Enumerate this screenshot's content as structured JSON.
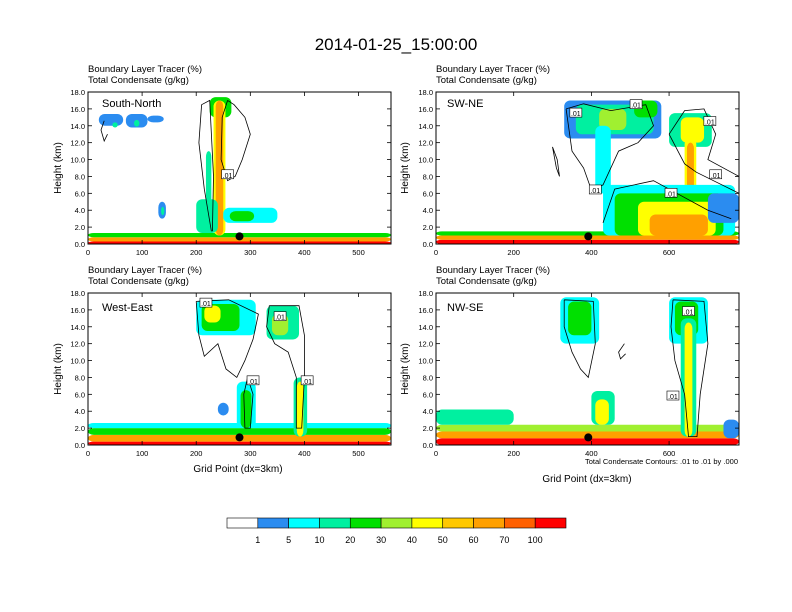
{
  "title": "2014-01-25_15:00:00",
  "colors": {
    "levels": [
      "#ffffff",
      "#2b8cf0",
      "#00ffff",
      "#00f0a0",
      "#00e000",
      "#a0f030",
      "#ffff00",
      "#ffc800",
      "#ffa000",
      "#ff6000",
      "#ff0000"
    ],
    "contour": "#000000",
    "marker": "#000000"
  },
  "chart_data": [
    {
      "type": "heatmap",
      "panel_label": "South-North",
      "subtitle_1": "Boundary Layer Tracer   (%)",
      "subtitle_2": "Total Condensate   (g/kg)",
      "ylabel": "Height (km)",
      "xlabel": "",
      "xlim": [
        0,
        560
      ],
      "ylim": [
        0,
        18
      ],
      "xticks": [
        "0",
        "100",
        "200",
        "300",
        "400",
        "500"
      ],
      "yticks": [
        "0.0",
        "2.0",
        "4.0",
        "6.0",
        "8.0",
        "10.0",
        "12.0",
        "14.0",
        "16.0",
        "18.0"
      ],
      "marker": {
        "x": 280,
        "y": 0.9
      },
      "contour_labels": [
        {
          "text": ".01",
          "x": 258,
          "y": 8.2
        }
      ],
      "blobs": [
        {
          "x": 0,
          "y": 0,
          "w": 560,
          "h": 0.3,
          "level": 10
        },
        {
          "x": 0,
          "y": 0.3,
          "w": 560,
          "h": 0.5,
          "level": 8
        },
        {
          "x": 0,
          "y": 0.8,
          "w": 560,
          "h": 0.5,
          "level": 4
        },
        {
          "x": 20,
          "y": 14.0,
          "w": 45,
          "h": 1.4,
          "level": 1
        },
        {
          "x": 70,
          "y": 13.8,
          "w": 40,
          "h": 1.6,
          "level": 1
        },
        {
          "x": 110,
          "y": 14.4,
          "w": 30,
          "h": 0.8,
          "level": 1
        },
        {
          "x": 45,
          "y": 13.8,
          "w": 10,
          "h": 0.6,
          "level": 3
        },
        {
          "x": 85,
          "y": 13.9,
          "w": 10,
          "h": 0.8,
          "level": 3
        },
        {
          "x": 225,
          "y": 15.0,
          "w": 40,
          "h": 2.4,
          "level": 4
        },
        {
          "x": 232,
          "y": 1.0,
          "w": 22,
          "h": 16.0,
          "level": 6
        },
        {
          "x": 236,
          "y": 1.0,
          "w": 14,
          "h": 16.0,
          "level": 8
        },
        {
          "x": 218,
          "y": 3.0,
          "w": 10,
          "h": 8.0,
          "level": 3
        },
        {
          "x": 200,
          "y": 1.3,
          "w": 40,
          "h": 4.0,
          "level": 3
        },
        {
          "x": 250,
          "y": 2.5,
          "w": 100,
          "h": 1.8,
          "level": 2
        },
        {
          "x": 262,
          "y": 2.7,
          "w": 45,
          "h": 1.2,
          "level": 4
        },
        {
          "x": 130,
          "y": 3.0,
          "w": 14,
          "h": 2.0,
          "level": 1
        },
        {
          "x": 135,
          "y": 3.4,
          "w": 6,
          "h": 1.0,
          "level": 3
        }
      ],
      "contours": [
        [
          [
            228,
            1.5
          ],
          [
            215,
            6.5
          ],
          [
            205,
            12.0
          ],
          [
            210,
            16.5
          ],
          [
            225,
            17.0
          ],
          [
            232,
            8.0
          ],
          [
            230,
            1.5
          ]
        ],
        [
          [
            258,
            17.0
          ],
          [
            270,
            16.5
          ],
          [
            290,
            15.0
          ],
          [
            300,
            13.0
          ],
          [
            285,
            10.0
          ],
          [
            272,
            8.0
          ],
          [
            258,
            7.5
          ],
          [
            246,
            10.0
          ],
          [
            248,
            15.0
          ],
          [
            258,
            17.0
          ]
        ],
        [
          [
            30,
            14.6
          ],
          [
            24,
            13.5
          ],
          [
            30,
            12.2
          ],
          [
            36,
            13.0
          ]
        ]
      ]
    },
    {
      "type": "heatmap",
      "panel_label": "SW-NE",
      "subtitle_1": "Boundary Layer Tracer   (%)",
      "subtitle_2": "Total Condensate   (g/kg)",
      "ylabel": "Height (km)",
      "xlabel": "",
      "xlim": [
        0,
        780
      ],
      "ylim": [
        0,
        18
      ],
      "xticks": [
        "0",
        "200",
        "400",
        "600"
      ],
      "yticks": [
        "0.0",
        "2.0",
        "4.0",
        "6.0",
        "8.0",
        "10.0",
        "12.0",
        "14.0",
        "16.0",
        "18.0"
      ],
      "marker": {
        "x": 392,
        "y": 0.9
      },
      "contour_labels": [
        {
          "text": ".01",
          "x": 515,
          "y": 16.5
        },
        {
          "text": ".01",
          "x": 360,
          "y": 15.5
        },
        {
          "text": ".01",
          "x": 705,
          "y": 14.5
        },
        {
          "text": ".01",
          "x": 720,
          "y": 8.2
        },
        {
          "text": ".01",
          "x": 410,
          "y": 6.4
        },
        {
          "text": ".01",
          "x": 605,
          "y": 6.0
        }
      ],
      "blobs": [
        {
          "x": 0,
          "y": 0,
          "w": 780,
          "h": 0.5,
          "level": 10
        },
        {
          "x": 0,
          "y": 0.5,
          "w": 780,
          "h": 0.5,
          "level": 8
        },
        {
          "x": 0,
          "y": 1.0,
          "w": 780,
          "h": 0.5,
          "level": 4
        },
        {
          "x": 330,
          "y": 12.5,
          "w": 250,
          "h": 4.5,
          "level": 1
        },
        {
          "x": 360,
          "y": 13.0,
          "w": 200,
          "h": 3.5,
          "level": 3
        },
        {
          "x": 420,
          "y": 13.5,
          "w": 70,
          "h": 2.5,
          "level": 5
        },
        {
          "x": 510,
          "y": 15.0,
          "w": 60,
          "h": 2.0,
          "level": 4
        },
        {
          "x": 410,
          "y": 6.0,
          "w": 40,
          "h": 8.0,
          "level": 2
        },
        {
          "x": 600,
          "y": 11.5,
          "w": 110,
          "h": 4.0,
          "level": 3
        },
        {
          "x": 630,
          "y": 12.0,
          "w": 60,
          "h": 3.0,
          "level": 6
        },
        {
          "x": 640,
          "y": 1.0,
          "w": 30,
          "h": 11.5,
          "level": 6
        },
        {
          "x": 646,
          "y": 1.0,
          "w": 18,
          "h": 11.0,
          "level": 8
        },
        {
          "x": 430,
          "y": 1.0,
          "w": 340,
          "h": 6.0,
          "level": 2
        },
        {
          "x": 460,
          "y": 1.0,
          "w": 280,
          "h": 5.0,
          "level": 4
        },
        {
          "x": 520,
          "y": 1.0,
          "w": 200,
          "h": 4.0,
          "level": 6
        },
        {
          "x": 550,
          "y": 1.0,
          "w": 150,
          "h": 2.5,
          "level": 8
        },
        {
          "x": 700,
          "y": 2.5,
          "w": 80,
          "h": 3.5,
          "level": 1
        }
      ],
      "contours": [
        [
          [
            335,
            16.0
          ],
          [
            380,
            16.6
          ],
          [
            450,
            15.8
          ],
          [
            540,
            16.5
          ],
          [
            560,
            14.0
          ],
          [
            520,
            12.0
          ],
          [
            470,
            11.0
          ],
          [
            430,
            7.0
          ],
          [
            400,
            6.4
          ],
          [
            380,
            9.0
          ],
          [
            350,
            11.0
          ],
          [
            335,
            16.0
          ]
        ],
        [
          [
            300,
            11.5
          ],
          [
            310,
            9.0
          ],
          [
            318,
            8.0
          ],
          [
            312,
            10.0
          ],
          [
            300,
            11.5
          ]
        ],
        [
          [
            600,
            13.0
          ],
          [
            640,
            15.8
          ],
          [
            690,
            16.0
          ],
          [
            720,
            13.0
          ],
          [
            700,
            10.0
          ],
          [
            780,
            8.0
          ],
          [
            780,
            6.0
          ],
          [
            670,
            8.5
          ],
          [
            640,
            9.5
          ],
          [
            600,
            13.0
          ]
        ],
        [
          [
            430,
            2.5
          ],
          [
            460,
            6.5
          ],
          [
            560,
            7.5
          ],
          [
            620,
            6.0
          ],
          [
            700,
            4.0
          ],
          [
            760,
            3.0
          ]
        ]
      ]
    },
    {
      "type": "heatmap",
      "panel_label": "West-East",
      "subtitle_1": "Boundary Layer Tracer   (%)",
      "subtitle_2": "Total Condensate   (g/kg)",
      "ylabel": "Height (km)",
      "xlabel": "Grid Point (dx=3km)",
      "xlim": [
        0,
        560
      ],
      "ylim": [
        0,
        18
      ],
      "xticks": [
        "0",
        "100",
        "200",
        "300",
        "400",
        "500"
      ],
      "yticks": [
        "0.0",
        "2.0",
        "4.0",
        "6.0",
        "8.0",
        "10.0",
        "12.0",
        "14.0",
        "16.0",
        "18.0"
      ],
      "marker": {
        "x": 280,
        "y": 0.9
      },
      "contour_labels": [
        {
          "text": ".01",
          "x": 218,
          "y": 16.8
        },
        {
          "text": ".01",
          "x": 355,
          "y": 15.2
        },
        {
          "text": ".01",
          "x": 305,
          "y": 7.6
        },
        {
          "text": ".01",
          "x": 405,
          "y": 7.6
        }
      ],
      "blobs": [
        {
          "x": 0,
          "y": 0,
          "w": 560,
          "h": 0.4,
          "level": 10
        },
        {
          "x": 0,
          "y": 0.4,
          "w": 560,
          "h": 0.8,
          "level": 8
        },
        {
          "x": 0,
          "y": 1.2,
          "w": 560,
          "h": 0.8,
          "level": 4
        },
        {
          "x": 0,
          "y": 2.0,
          "w": 560,
          "h": 0.6,
          "level": 2
        },
        {
          "x": 200,
          "y": 13.0,
          "w": 110,
          "h": 4.2,
          "level": 2
        },
        {
          "x": 210,
          "y": 13.5,
          "w": 70,
          "h": 3.2,
          "level": 4
        },
        {
          "x": 215,
          "y": 14.5,
          "w": 30,
          "h": 2.0,
          "level": 6
        },
        {
          "x": 330,
          "y": 12.5,
          "w": 60,
          "h": 4.0,
          "level": 3
        },
        {
          "x": 340,
          "y": 13.0,
          "w": 30,
          "h": 2.5,
          "level": 5
        },
        {
          "x": 275,
          "y": 2.0,
          "w": 35,
          "h": 5.5,
          "level": 2
        },
        {
          "x": 282,
          "y": 2.0,
          "w": 20,
          "h": 4.5,
          "level": 4
        },
        {
          "x": 380,
          "y": 1.0,
          "w": 25,
          "h": 7.0,
          "level": 3
        },
        {
          "x": 386,
          "y": 1.0,
          "w": 12,
          "h": 6.5,
          "level": 6
        },
        {
          "x": 240,
          "y": 3.5,
          "w": 20,
          "h": 1.5,
          "level": 1
        }
      ],
      "contours": [
        [
          [
            200,
            17.0
          ],
          [
            260,
            17.2
          ],
          [
            315,
            15.5
          ],
          [
            305,
            12.5
          ],
          [
            290,
            10.0
          ],
          [
            275,
            8.0
          ],
          [
            255,
            9.0
          ],
          [
            240,
            12.0
          ],
          [
            215,
            10.5
          ],
          [
            205,
            13.0
          ],
          [
            200,
            17.0
          ]
        ],
        [
          [
            335,
            16.5
          ],
          [
            390,
            16.5
          ],
          [
            400,
            13.0
          ],
          [
            400,
            8.0
          ],
          [
            395,
            2.0
          ],
          [
            385,
            2.0
          ],
          [
            385,
            8.0
          ],
          [
            370,
            11.0
          ],
          [
            345,
            12.0
          ],
          [
            330,
            14.0
          ],
          [
            335,
            16.5
          ]
        ],
        [
          [
            295,
            8.0
          ],
          [
            305,
            6.0
          ],
          [
            300,
            2.0
          ],
          [
            290,
            2.0
          ],
          [
            288,
            6.0
          ],
          [
            295,
            8.0
          ]
        ]
      ]
    },
    {
      "type": "heatmap",
      "panel_label": "NW-SE",
      "subtitle_1": "Boundary Layer Tracer   (%)",
      "subtitle_2": "Total Condensate   (g/kg)",
      "ylabel": "Height (km)",
      "xlabel": "Grid Point (dx=3km)",
      "footnote": "Total Condensate Contours: .01 to .01 by .000",
      "xlim": [
        0,
        780
      ],
      "ylim": [
        0,
        18
      ],
      "xticks": [
        "0",
        "200",
        "400",
        "600"
      ],
      "yticks": [
        "0.0",
        "2.0",
        "4.0",
        "6.0",
        "8.0",
        "10.0",
        "12.0",
        "14.0",
        "16.0",
        "18.0"
      ],
      "marker": {
        "x": 392,
        "y": 0.9
      },
      "contour_labels": [
        {
          "text": ".01",
          "x": 650,
          "y": 15.8
        },
        {
          "text": ".01",
          "x": 610,
          "y": 5.8
        }
      ],
      "blobs": [
        {
          "x": 0,
          "y": 0,
          "w": 780,
          "h": 0.8,
          "level": 10
        },
        {
          "x": 0,
          "y": 0.8,
          "w": 780,
          "h": 0.8,
          "level": 8
        },
        {
          "x": 0,
          "y": 1.6,
          "w": 780,
          "h": 0.8,
          "level": 5
        },
        {
          "x": 0,
          "y": 2.4,
          "w": 200,
          "h": 1.8,
          "level": 3
        },
        {
          "x": 400,
          "y": 2.4,
          "w": 60,
          "h": 4.0,
          "level": 3
        },
        {
          "x": 410,
          "y": 2.4,
          "w": 35,
          "h": 3.0,
          "level": 6
        },
        {
          "x": 320,
          "y": 12.0,
          "w": 100,
          "h": 5.5,
          "level": 2
        },
        {
          "x": 340,
          "y": 13.0,
          "w": 60,
          "h": 4.0,
          "level": 4
        },
        {
          "x": 600,
          "y": 12.0,
          "w": 100,
          "h": 5.5,
          "level": 2
        },
        {
          "x": 615,
          "y": 13.0,
          "w": 60,
          "h": 4.0,
          "level": 4
        },
        {
          "x": 630,
          "y": 1.0,
          "w": 40,
          "h": 14.0,
          "level": 3
        },
        {
          "x": 640,
          "y": 1.0,
          "w": 20,
          "h": 13.5,
          "level": 6
        },
        {
          "x": 740,
          "y": 0.8,
          "w": 40,
          "h": 2.2,
          "level": 1
        }
      ],
      "contours": [
        [
          [
            330,
            17.2
          ],
          [
            405,
            17.0
          ],
          [
            410,
            12.0
          ],
          [
            392,
            8.0
          ],
          [
            372,
            9.0
          ],
          [
            350,
            11.0
          ],
          [
            330,
            14.0
          ],
          [
            330,
            17.2
          ]
        ],
        [
          [
            610,
            17.2
          ],
          [
            690,
            17.0
          ],
          [
            700,
            12.0
          ],
          [
            680,
            6.0
          ],
          [
            672,
            1.0
          ],
          [
            650,
            1.0
          ],
          [
            640,
            6.0
          ],
          [
            615,
            10.0
          ],
          [
            605,
            14.0
          ],
          [
            610,
            17.2
          ]
        ],
        [
          [
            485,
            12.0
          ],
          [
            470,
            11.0
          ],
          [
            475,
            10.2
          ],
          [
            488,
            10.8
          ]
        ]
      ]
    }
  ],
  "colorbar": {
    "labels": [
      "1",
      "5",
      "10",
      "20",
      "30",
      "40",
      "50",
      "60",
      "70",
      "100"
    ]
  }
}
